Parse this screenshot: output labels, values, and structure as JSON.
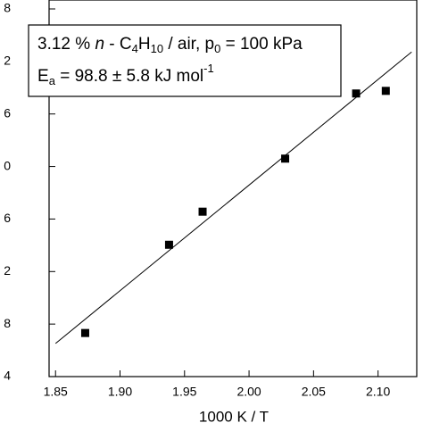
{
  "chart_data": {
    "type": "scatter",
    "x_label": "1000 K / T",
    "annotation": {
      "line1": [
        "3.12 % ",
        "n",
        " - C",
        "4",
        "H",
        "10",
        " / air, p",
        "0",
        " = 100 kPa"
      ],
      "line2": [
        "E",
        "a",
        " = 98.8 ± 5.8 kJ mol",
        "-1"
      ]
    },
    "x": [
      1.873,
      1.938,
      1.964,
      2.028,
      2.083,
      2.106
    ],
    "values": [
      0.83,
      2.51,
      3.14,
      4.15,
      5.39,
      5.44
    ],
    "color": "#000000",
    "fit": {
      "x": [
        1.85,
        2.126
      ],
      "values": [
        0.63,
        6.18
      ],
      "color": "#000000"
    },
    "xlim": [
      1.845,
      2.13
    ],
    "xticks": [
      {
        "value": 1.85,
        "label": "1.85"
      },
      {
        "value": 1.9,
        "label": "1.90"
      },
      {
        "value": 1.95,
        "label": "1.95"
      },
      {
        "value": 2.0,
        "label": "2.00"
      },
      {
        "value": 2.05,
        "label": "2.05"
      },
      {
        "value": 2.1,
        "label": "2.10"
      }
    ],
    "ylim": [
      0,
      7.17
    ],
    "yticks": [
      {
        "value": 0,
        "label": "4"
      },
      {
        "value": 1,
        "label": "8"
      },
      {
        "value": 2,
        "label": "2"
      },
      {
        "value": 3,
        "label": "6"
      },
      {
        "value": 4,
        "label": "0"
      },
      {
        "value": 5,
        "label": "6"
      },
      {
        "value": 6,
        "label": "2"
      },
      {
        "value": 7,
        "label": "8"
      }
    ]
  }
}
